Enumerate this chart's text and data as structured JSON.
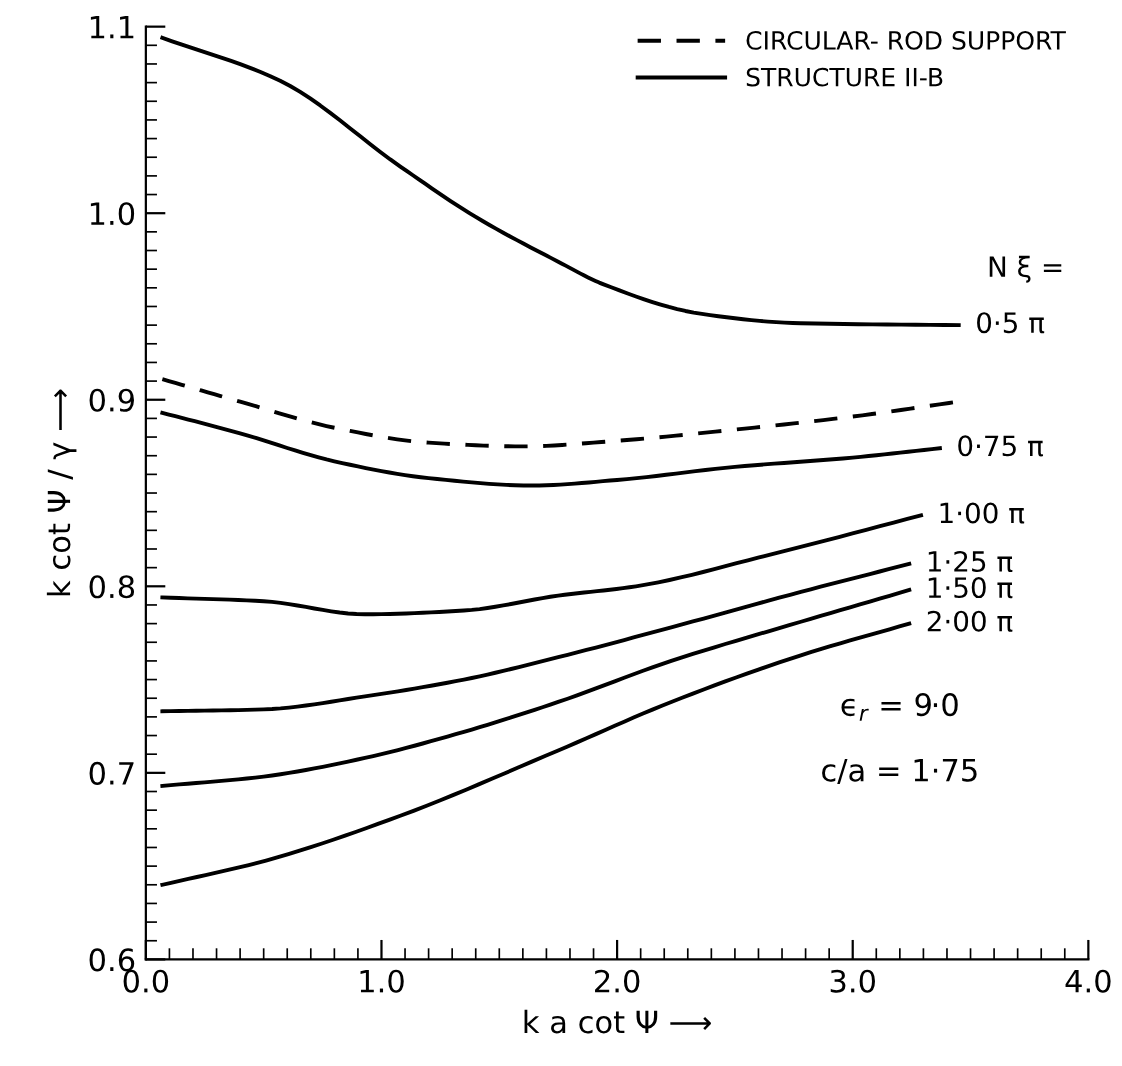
{
  "chart_data": {
    "type": "line",
    "xlabel": "k a cot Ψ ⟶",
    "ylabel": "k cot Ψ / γ ⟶",
    "xlim": [
      0,
      4
    ],
    "ylim": [
      0.6,
      1.1
    ],
    "xticks": [
      {
        "value": 0,
        "label": "0.0"
      },
      {
        "value": 1,
        "label": "1.0"
      },
      {
        "value": 2,
        "label": "2.0"
      },
      {
        "value": 3,
        "label": "3.0"
      },
      {
        "value": 4,
        "label": "4.0"
      }
    ],
    "yticks": [
      0.6,
      0.7,
      0.8,
      0.9,
      {
        "value": 1.0,
        "label": "1.0"
      },
      1.1
    ],
    "grid": false,
    "legend": "top right",
    "marker": "none",
    "series": [
      {
        "name": "CIRCULAR- ROD SUPPORT",
        "color": "#000000",
        "line_style": "dashed",
        "x": [
          0.07,
          0.4,
          0.8,
          1.2,
          1.6,
          2.0,
          2.5,
          3.0,
          3.45
        ],
        "values": [
          0.911,
          0.899,
          0.885,
          0.877,
          0.875,
          0.878,
          0.884,
          0.891,
          0.899
        ]
      },
      {
        "name": "0·5 π",
        "color": "#000000",
        "line_style": "solid",
        "x": [
          0.07,
          0.57,
          1.08,
          1.4,
          1.75,
          1.94,
          2.36,
          2.78,
          3.45
        ],
        "values": [
          1.094,
          1.071,
          1.025,
          0.998,
          0.974,
          0.962,
          0.946,
          0.941,
          0.94
        ]
      },
      {
        "name": "0·75 π",
        "color": "#000000",
        "line_style": "solid",
        "x": [
          0.07,
          0.4,
          0.8,
          1.2,
          1.64,
          2.0,
          2.5,
          3.0,
          3.37
        ],
        "values": [
          0.893,
          0.882,
          0.867,
          0.858,
          0.854,
          0.857,
          0.864,
          0.869,
          0.874
        ]
      },
      {
        "name": "1·00 π",
        "color": "#000000",
        "line_style": "solid",
        "x": [
          0.07,
          0.5,
          0.93,
          1.35,
          1.75,
          2.08,
          2.65,
          3.29
        ],
        "values": [
          0.794,
          0.792,
          0.785,
          0.787,
          0.795,
          0.8,
          0.817,
          0.838
        ]
      },
      {
        "name": "1·25 π",
        "color": "#000000",
        "line_style": "solid",
        "x": [
          0.07,
          0.5,
          0.93,
          1.35,
          1.75,
          2.23,
          2.78,
          3.24
        ],
        "values": [
          0.733,
          0.734,
          0.741,
          0.75,
          0.762,
          0.778,
          0.797,
          0.812
        ]
      },
      {
        "name": "1·50 π",
        "color": "#000000",
        "line_style": "solid",
        "x": [
          0.07,
          0.5,
          0.93,
          1.35,
          1.75,
          2.23,
          2.78,
          3.24
        ],
        "values": [
          0.693,
          0.698,
          0.708,
          0.722,
          0.738,
          0.76,
          0.781,
          0.798
        ]
      },
      {
        "name": "2·00 π",
        "color": "#000000",
        "line_style": "solid",
        "x": [
          0.07,
          0.51,
          1.08,
          1.75,
          2.23,
          2.78,
          3.24
        ],
        "values": [
          0.64,
          0.653,
          0.677,
          0.712,
          0.738,
          0.763,
          0.78
        ]
      }
    ],
    "annotations": [
      "STRUCTURE II-B",
      "N ξ =",
      "ϵ$_{r}$ = 9·0",
      "c/a = 1·75"
    ]
  }
}
